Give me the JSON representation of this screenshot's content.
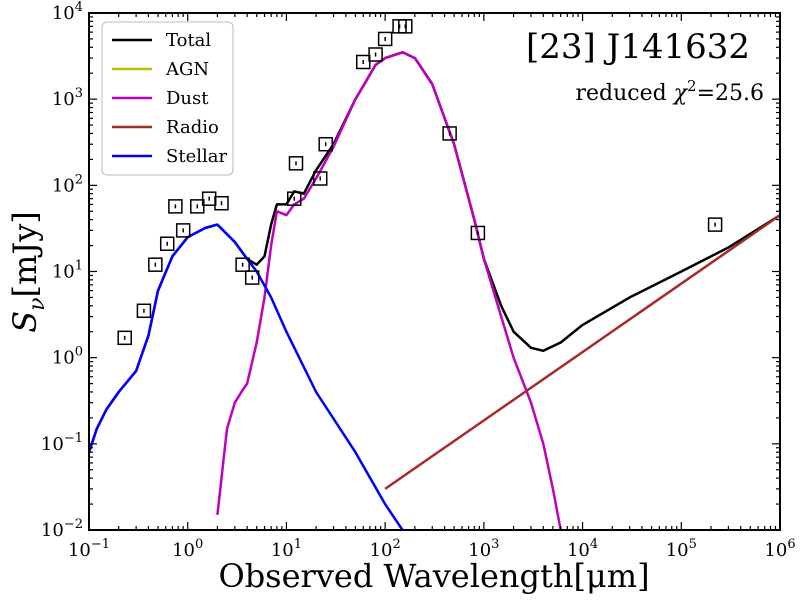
{
  "chart_data": {
    "type": "line",
    "xscale": "log",
    "yscale": "log",
    "xlim": [
      0.1,
      1000000
    ],
    "ylim": [
      0.01,
      10000
    ],
    "xlabel": "Observed Wavelength[μm]",
    "ylabel": "Sν[mJy]",
    "ylabel_main": "S",
    "ylabel_sub": "ν",
    "ylabel_unit": "[mJy]",
    "x_ticks": [
      {
        "value": 0.1,
        "base": "10",
        "exp": "−1"
      },
      {
        "value": 1,
        "base": "10",
        "exp": "0"
      },
      {
        "value": 10,
        "base": "10",
        "exp": "1"
      },
      {
        "value": 100,
        "base": "10",
        "exp": "2"
      },
      {
        "value": 1000,
        "base": "10",
        "exp": "3"
      },
      {
        "value": 10000,
        "base": "10",
        "exp": "4"
      },
      {
        "value": 100000,
        "base": "10",
        "exp": "5"
      },
      {
        "value": 1000000,
        "base": "10",
        "exp": "6"
      }
    ],
    "y_ticks": [
      {
        "value": 0.01,
        "base": "10",
        "exp": "−2"
      },
      {
        "value": 0.1,
        "base": "10",
        "exp": "−1"
      },
      {
        "value": 1,
        "base": "10",
        "exp": "0"
      },
      {
        "value": 10,
        "base": "10",
        "exp": "1"
      },
      {
        "value": 100,
        "base": "10",
        "exp": "2"
      },
      {
        "value": 1000,
        "base": "10",
        "exp": "3"
      },
      {
        "value": 10000,
        "base": "10",
        "exp": "4"
      }
    ],
    "annotation_title": "[23] J141632",
    "annotation_fit_prefix": "reduced ",
    "annotation_fit_symbol": "χ",
    "annotation_fit_exp": "2",
    "annotation_fit_value": "=25.6",
    "legend_location": "upper-left",
    "series": [
      {
        "name": "Total",
        "color": "#000000",
        "x": [
          0.1,
          0.12,
          0.15,
          0.2,
          0.3,
          0.4,
          0.5,
          0.7,
          1.0,
          1.5,
          2.0,
          3.0,
          4.0,
          5.0,
          6.0,
          7.0,
          8.0,
          10,
          12,
          15,
          20,
          30,
          50,
          80,
          100,
          150,
          200,
          300,
          500,
          800,
          1000,
          1500,
          2000,
          3000,
          4000,
          6000,
          10000,
          30000,
          100000,
          300000,
          1000000
        ],
        "y": [
          0.08,
          0.15,
          0.25,
          0.4,
          0.7,
          1.8,
          6,
          15,
          25,
          32,
          35,
          22,
          14,
          12,
          15,
          35,
          60,
          60,
          85,
          80,
          150,
          300,
          1000,
          2500,
          3000,
          3500,
          3000,
          1500,
          300,
          40,
          14,
          4,
          2,
          1.3,
          1.2,
          1.5,
          2.4,
          5,
          10,
          19,
          45
        ]
      },
      {
        "name": "AGN",
        "color": "#bfbf00",
        "x": [],
        "y": []
      },
      {
        "name": "Dust",
        "color": "#bf00bf",
        "x": [
          2.0,
          2.5,
          3.0,
          3.5,
          4.0,
          5.0,
          6.0,
          7.0,
          8.0,
          10,
          12,
          15,
          20,
          30,
          50,
          80,
          100,
          150,
          200,
          300,
          500,
          800,
          1000,
          1500,
          2000,
          3000,
          4000,
          5000,
          6000
        ],
        "y": [
          0.015,
          0.15,
          0.3,
          0.4,
          0.5,
          1.5,
          5,
          20,
          50,
          45,
          60,
          70,
          120,
          280,
          1000,
          2500,
          3000,
          3500,
          3000,
          1500,
          300,
          40,
          14,
          3,
          1,
          0.3,
          0.1,
          0.03,
          0.01
        ]
      },
      {
        "name": "Radio",
        "color": "#a52a2a",
        "x": [
          100,
          1000000
        ],
        "y": [
          0.03,
          45
        ]
      },
      {
        "name": "Stellar",
        "color": "#0000ff",
        "x": [
          0.1,
          0.12,
          0.15,
          0.2,
          0.3,
          0.4,
          0.5,
          0.7,
          1.0,
          1.5,
          2.0,
          3.0,
          4.0,
          5.0,
          7.0,
          10,
          20,
          50,
          100,
          150
        ],
        "y": [
          0.08,
          0.15,
          0.25,
          0.4,
          0.7,
          1.8,
          6,
          15,
          25,
          32,
          35,
          22,
          14,
          10,
          5,
          2,
          0.4,
          0.08,
          0.02,
          0.01
        ]
      }
    ],
    "observed_points": {
      "x": [
        0.23,
        0.36,
        0.47,
        0.62,
        0.75,
        0.9,
        1.25,
        1.65,
        2.2,
        3.6,
        4.5,
        12,
        12.5,
        22,
        25,
        60,
        80,
        100,
        140,
        160,
        450,
        870,
        220000
      ],
      "y": [
        1.7,
        3.5,
        12,
        21,
        57,
        30,
        57,
        70,
        62,
        12,
        8.5,
        70,
        180,
        120,
        300,
        2700,
        3300,
        5000,
        7000,
        7000,
        400,
        28,
        35
      ]
    }
  }
}
